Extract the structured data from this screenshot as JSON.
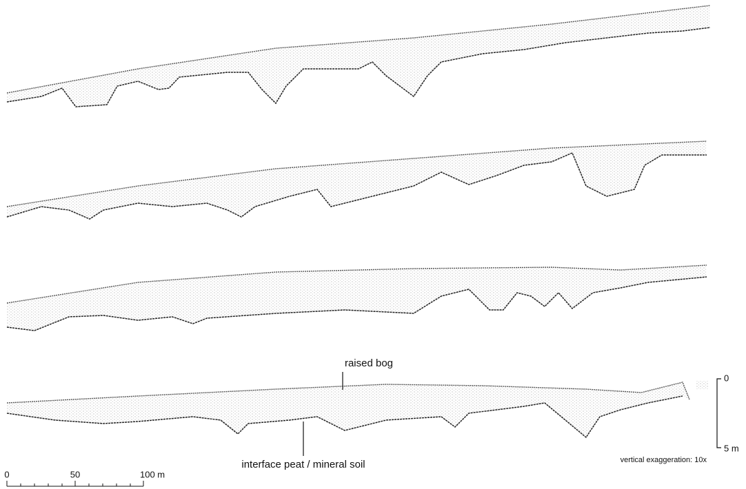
{
  "annotations": {
    "raised_bog": "raised bog",
    "interface": "interface peat / mineral soil",
    "exaggeration": "vertical exaggeration: 10x"
  },
  "horizontal_scale": {
    "labels": [
      "0",
      "50",
      "100 m"
    ]
  },
  "vertical_scale": {
    "labels": [
      "0",
      "5 m"
    ]
  }
}
